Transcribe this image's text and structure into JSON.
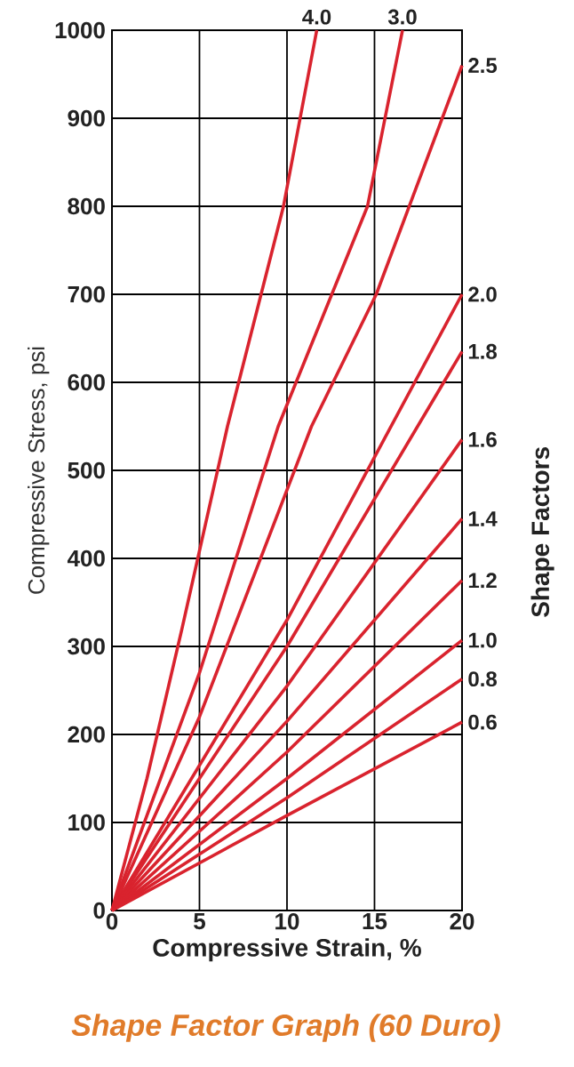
{
  "chart_data": {
    "type": "line",
    "title": "Shape Factor Graph (60 Duro)",
    "xlabel": "Compressive Strain, %",
    "ylabel": "Compressive Stress, psi",
    "y2label": "Shape Factors",
    "xlim": [
      0,
      20
    ],
    "ylim": [
      0,
      1000
    ],
    "xticks": [
      0,
      5,
      10,
      15,
      20
    ],
    "yticks": [
      0,
      100,
      200,
      300,
      400,
      500,
      600,
      700,
      800,
      900,
      1000
    ],
    "grid": true,
    "series": [
      {
        "name": "4.0",
        "color": "#d9232e",
        "x": [
          0,
          2,
          4,
          6.6,
          9.8,
          11.7
        ],
        "values": [
          0,
          150,
          320,
          550,
          800,
          1000
        ]
      },
      {
        "name": "3.0",
        "color": "#d9232e",
        "x": [
          0,
          5,
          9.5,
          14.6,
          16.6
        ],
        "values": [
          0,
          270,
          550,
          800,
          1000
        ]
      },
      {
        "name": "2.5",
        "color": "#d9232e",
        "x": [
          0,
          5,
          11.4,
          15.1,
          20
        ],
        "values": [
          0,
          220,
          550,
          700,
          960
        ]
      },
      {
        "name": "2.0",
        "color": "#d9232e",
        "x": [
          0,
          10,
          20
        ],
        "values": [
          0,
          330,
          700
        ]
      },
      {
        "name": "1.8",
        "color": "#d9232e",
        "x": [
          0,
          10,
          20
        ],
        "values": [
          0,
          300,
          635
        ]
      },
      {
        "name": "1.6",
        "color": "#d9232e",
        "x": [
          0,
          10,
          20
        ],
        "values": [
          0,
          255,
          535
        ]
      },
      {
        "name": "1.4",
        "color": "#d9232e",
        "x": [
          0,
          10,
          20
        ],
        "values": [
          0,
          215,
          445
        ]
      },
      {
        "name": "1.2",
        "color": "#d9232e",
        "x": [
          0,
          10,
          20
        ],
        "values": [
          0,
          180,
          375
        ]
      },
      {
        "name": "1.0",
        "color": "#d9232e",
        "x": [
          0,
          10,
          20
        ],
        "values": [
          0,
          150,
          307
        ]
      },
      {
        "name": "0.8",
        "color": "#d9232e",
        "x": [
          0,
          10,
          20
        ],
        "values": [
          0,
          128,
          263
        ]
      },
      {
        "name": "0.6",
        "color": "#d9232e",
        "x": [
          0,
          10,
          20
        ],
        "values": [
          0,
          108,
          214
        ]
      }
    ]
  }
}
